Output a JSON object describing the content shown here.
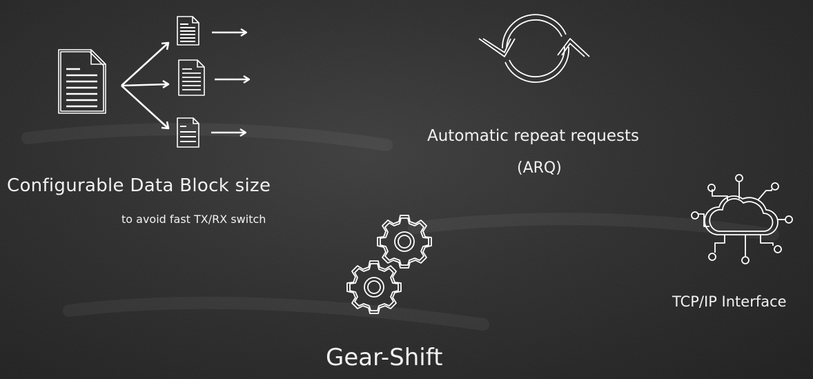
{
  "features": {
    "data_block": {
      "title": "Configurable Data Block size",
      "subtitle": "to avoid fast TX/RX switch",
      "icon": "document-split-icon"
    },
    "arq": {
      "title": "Automatic repeat requests",
      "subtitle": "(ARQ)",
      "icon": "refresh-cycle-icon"
    },
    "gear_shift": {
      "title": "Gear-Shift",
      "icon": "gears-icon"
    },
    "tcp_ip": {
      "title": "TCP/IP Interface",
      "icon": "cloud-network-icon"
    }
  },
  "colors": {
    "background": "#2a2a2a",
    "chalk": "#ffffff"
  }
}
